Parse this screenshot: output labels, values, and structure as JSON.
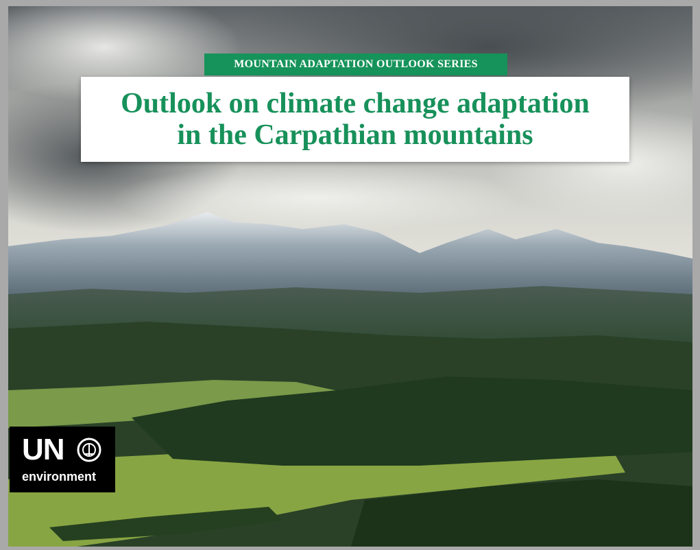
{
  "series_label": "MOUNTAIN ADAPTATION OUTLOOK SERIES",
  "title_lines": [
    "Outlook on climate change adaptation",
    "in the Carpathian mountains"
  ],
  "logo": {
    "top": "UN",
    "bottom": "environment"
  }
}
